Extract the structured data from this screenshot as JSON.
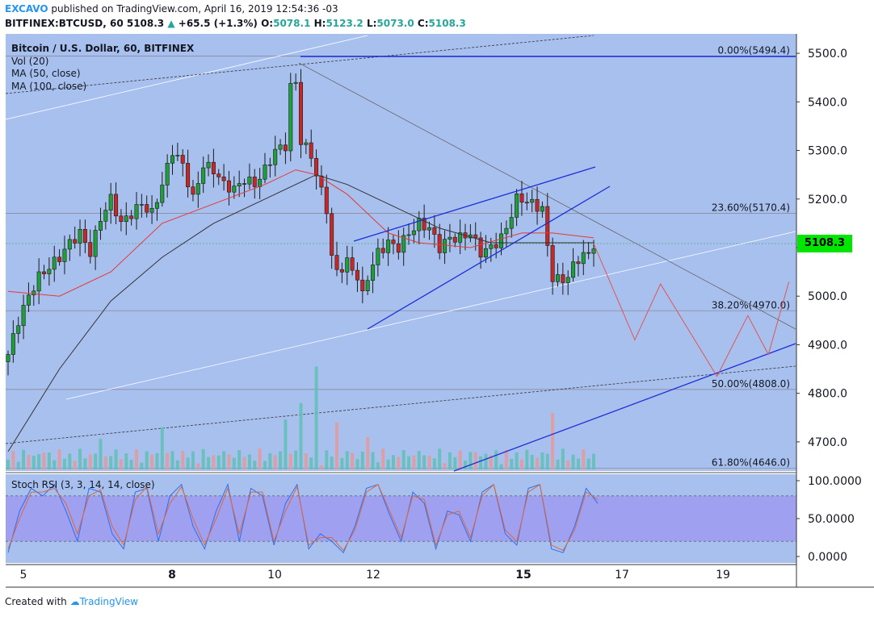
{
  "header": {
    "author": "EXCAVO",
    "published_text": "published on TradingView.com, April 16, 2019 12:54:36 -03",
    "symbol_line_prefix": "BITFINEX:BTCUSD, 60  5108.3",
    "change": "+65.5 (+1.3%)",
    "o_label": "O:",
    "o_value": "5078.1",
    "h_label": "H:",
    "h_value": "5123.2",
    "l_label": "L:",
    "l_value": "5073.0",
    "c_label": "C:",
    "c_value": "5108.3"
  },
  "legend": {
    "title": "Bitcoin / U.S. Dollar, 60, BITFINEX",
    "vol": "Vol (20)",
    "ma50": "MA (50, close)",
    "ma100": "MA (100, close)"
  },
  "stoch_label": "Stoch RSI (3, 3, 14, 14, close)",
  "footer": {
    "created_with": "Created with",
    "brand": "TradingView"
  },
  "colors": {
    "background": "#a8c0ee",
    "candle_up": "#26a69a",
    "candle_down": "#ef5350",
    "ma50": "#e53935",
    "ma100": "#333333",
    "trendline": "#1c2fd6",
    "projection": "#e05555",
    "stoch_band": "#9f9cf0",
    "last_price": "#00e600"
  },
  "chart_data": [
    {
      "type": "candlestick",
      "title": "Bitcoin / U.S. Dollar, 60, BITFINEX",
      "x_tick_labels": [
        "5",
        "8",
        "10",
        "12",
        "15",
        "17",
        "19"
      ],
      "bold_x_ticks": [
        "8",
        "15"
      ],
      "y_tick_labels": [
        "5500.0",
        "5400.0",
        "5300.0",
        "5200.0",
        "5100.0",
        "5000.0",
        "4900.0",
        "4800.0",
        "4700.0"
      ],
      "ylim": [
        4640,
        5540
      ],
      "last_price": "5108.3",
      "last_price_value": 5108.3,
      "fib_levels": [
        {
          "label": "0.00%(5494.4)",
          "value": 5494.4
        },
        {
          "label": "23.60%(5170.4)",
          "value": 5170.4
        },
        {
          "label": "38.20%(4970.0)",
          "value": 4970.0
        },
        {
          "label": "50.00%(4808.0)",
          "value": 4808.0
        },
        {
          "label": "61.80%(4646.0)",
          "value": 4646.0
        }
      ],
      "close_path": [
        [
          0,
          4880
        ],
        [
          2,
          4950
        ],
        [
          4,
          5000
        ],
        [
          6,
          5040
        ],
        [
          8,
          5060
        ],
        [
          10,
          5080
        ],
        [
          12,
          5110
        ],
        [
          14,
          5130
        ],
        [
          16,
          5090
        ],
        [
          18,
          5160
        ],
        [
          20,
          5200
        ],
        [
          22,
          5150
        ],
        [
          24,
          5170
        ],
        [
          26,
          5190
        ],
        [
          28,
          5170
        ],
        [
          30,
          5230
        ],
        [
          32,
          5300
        ],
        [
          34,
          5270
        ],
        [
          36,
          5200
        ],
        [
          38,
          5270
        ],
        [
          40,
          5260
        ],
        [
          42,
          5230
        ],
        [
          44,
          5220
        ],
        [
          46,
          5240
        ],
        [
          48,
          5230
        ],
        [
          50,
          5260
        ],
        [
          52,
          5300
        ],
        [
          54,
          5310
        ],
        [
          55,
          5430
        ],
        [
          56,
          5440
        ],
        [
          57,
          5320
        ],
        [
          59,
          5290
        ],
        [
          60,
          5250
        ],
        [
          62,
          5180
        ],
        [
          63,
          5080
        ],
        [
          64,
          5050
        ],
        [
          66,
          5070
        ],
        [
          68,
          5040
        ],
        [
          69,
          5000
        ],
        [
          70,
          5040
        ],
        [
          72,
          5090
        ],
        [
          74,
          5110
        ],
        [
          76,
          5100
        ],
        [
          78,
          5130
        ],
        [
          80,
          5150
        ],
        [
          82,
          5140
        ],
        [
          84,
          5100
        ],
        [
          86,
          5120
        ],
        [
          88,
          5120
        ],
        [
          90,
          5130
        ],
        [
          92,
          5090
        ],
        [
          94,
          5100
        ],
        [
          96,
          5120
        ],
        [
          97,
          5140
        ],
        [
          99,
          5200
        ],
        [
          100,
          5200
        ],
        [
          102,
          5190
        ],
        [
          104,
          5180
        ],
        [
          105,
          5100
        ],
        [
          106,
          5040
        ],
        [
          108,
          5030
        ],
        [
          110,
          5060
        ],
        [
          112,
          5090
        ],
        [
          113,
          5080
        ],
        [
          114,
          5108
        ]
      ],
      "ma50": [
        [
          0,
          5010
        ],
        [
          10,
          5000
        ],
        [
          20,
          5050
        ],
        [
          30,
          5150
        ],
        [
          40,
          5190
        ],
        [
          50,
          5230
        ],
        [
          56,
          5260
        ],
        [
          60,
          5250
        ],
        [
          66,
          5210
        ],
        [
          74,
          5130
        ],
        [
          80,
          5110
        ],
        [
          90,
          5100
        ],
        [
          100,
          5130
        ],
        [
          106,
          5130
        ],
        [
          114,
          5120
        ]
      ],
      "ma100": [
        [
          0,
          4680
        ],
        [
          10,
          4850
        ],
        [
          20,
          4990
        ],
        [
          30,
          5080
        ],
        [
          40,
          5150
        ],
        [
          50,
          5200
        ],
        [
          60,
          5250
        ],
        [
          66,
          5230
        ],
        [
          74,
          5190
        ],
        [
          84,
          5140
        ],
        [
          94,
          5110
        ],
        [
          104,
          5110
        ],
        [
          114,
          5110
        ]
      ],
      "projection": [
        [
          114,
          5108
        ],
        [
          122,
          4910
        ],
        [
          127,
          5025
        ],
        [
          138,
          4835
        ],
        [
          144,
          4960
        ],
        [
          148,
          4880
        ],
        [
          152,
          5030
        ]
      ],
      "volume_spikes": [
        [
          18,
          4706
        ],
        [
          30,
          4730
        ],
        [
          54,
          4746
        ],
        [
          57,
          4780
        ],
        [
          60,
          4855
        ],
        [
          64,
          4740
        ],
        [
          70,
          4710
        ],
        [
          106,
          4760
        ]
      ]
    },
    {
      "type": "line",
      "title": "Stoch RSI (3, 3, 14, 14, close)",
      "y_tick_labels": [
        "100.0000",
        "50.0000",
        "0.0000"
      ],
      "ylim": [
        0,
        100
      ],
      "band": [
        20,
        80
      ],
      "series": [
        {
          "values": [
            5,
            60,
            90,
            80,
            95,
            60,
            20,
            90,
            85,
            30,
            10,
            85,
            90,
            20,
            80,
            95,
            40,
            10,
            60,
            95,
            20,
            90,
            80,
            15,
            70,
            95,
            10,
            30,
            20,
            5,
            40,
            90,
            95,
            55,
            20,
            85,
            70,
            10,
            60,
            55,
            20,
            85,
            95,
            30,
            15,
            90,
            95,
            10,
            5,
            40,
            90,
            70
          ]
        },
        {
          "values": [
            10,
            50,
            85,
            85,
            90,
            70,
            30,
            80,
            88,
            40,
            15,
            75,
            92,
            30,
            70,
            92,
            50,
            15,
            50,
            90,
            30,
            85,
            85,
            20,
            60,
            92,
            15,
            25,
            25,
            8,
            35,
            85,
            95,
            60,
            25,
            80,
            75,
            15,
            55,
            60,
            25,
            80,
            95,
            35,
            20,
            85,
            95,
            15,
            8,
            35,
            85,
            75
          ]
        }
      ]
    }
  ]
}
